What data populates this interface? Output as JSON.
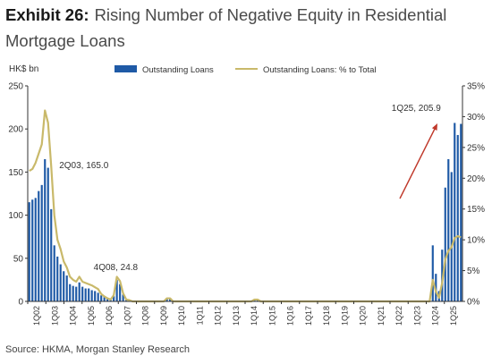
{
  "title": {
    "exhibit": "Exhibit 26:",
    "text": "Rising Number of Negative Equity in Residential Mortgage Loans"
  },
  "source": "Source: HKMA, Morgan Stanley Research",
  "colors": {
    "bar": "#1f5aa6",
    "line": "#c9b96a",
    "arrow": "#c0392b",
    "axis": "#333333"
  },
  "chart_data": {
    "type": "bar",
    "ylabel": "HK$ bn",
    "ylim": [
      0,
      250
    ],
    "yticks": [
      0,
      50,
      100,
      150,
      200,
      250
    ],
    "y2lim": [
      0,
      35
    ],
    "y2ticks": [
      "0%",
      "5%",
      "10%",
      "15%",
      "20%",
      "25%",
      "30%",
      "35%"
    ],
    "legend_position": "top",
    "xtick_labels": [
      "1Q02",
      "1Q03",
      "1Q04",
      "1Q05",
      "1Q06",
      "1Q07",
      "1Q08",
      "1Q09",
      "1Q10",
      "1Q11",
      "1Q12",
      "1Q13",
      "1Q14",
      "1Q15",
      "1Q16",
      "1Q17",
      "1Q18",
      "1Q19",
      "1Q20",
      "1Q21",
      "1Q22",
      "1Q23",
      "1Q24",
      "1Q25"
    ],
    "series": [
      {
        "name": "Outstanding Loans",
        "type": "bar",
        "axis": "left",
        "values": [
          115,
          118,
          120,
          128,
          135,
          165,
          155,
          107,
          65,
          52,
          43,
          35,
          30,
          20,
          18,
          17,
          22,
          17,
          15,
          15,
          13,
          12,
          10,
          7,
          5,
          3,
          2,
          6,
          24.8,
          20,
          8,
          2,
          1,
          0,
          0,
          0,
          0,
          0,
          0,
          0,
          0,
          0,
          0,
          0,
          3,
          3,
          0,
          0,
          0,
          0,
          0,
          0,
          0,
          0,
          0,
          0,
          0,
          0,
          0,
          0,
          0,
          0,
          0,
          0,
          0,
          0,
          0,
          0,
          0,
          0,
          0,
          0,
          2,
          2,
          0,
          0,
          0,
          0,
          0,
          0,
          0,
          0,
          0,
          0,
          0,
          0,
          0,
          0,
          0,
          0,
          0,
          0,
          0,
          0,
          0,
          0,
          0,
          0,
          0,
          0,
          0,
          0,
          0,
          0,
          0,
          0,
          0,
          0,
          0,
          0,
          0,
          0,
          0,
          0,
          0,
          0,
          0,
          0,
          0,
          0,
          0,
          0,
          0,
          0,
          0,
          0,
          0,
          0,
          0,
          65,
          32,
          12,
          60,
          132,
          165,
          150,
          207,
          193,
          205.9
        ]
      },
      {
        "name": "Outstanding Loans: % to Total",
        "type": "line",
        "axis": "right",
        "values": [
          21.2,
          21.5,
          22.5,
          24,
          25.5,
          31,
          29,
          22,
          14,
          10,
          8.5,
          6.5,
          5.5,
          4,
          3.5,
          3.2,
          4,
          3.2,
          3,
          2.8,
          2.6,
          2.3,
          2,
          1.2,
          0.8,
          0.5,
          0.3,
          1,
          4,
          3.3,
          1.3,
          0.3,
          0.2,
          0,
          0,
          0,
          0,
          0,
          0,
          0,
          0,
          0,
          0,
          0,
          0.5,
          0.5,
          0,
          0,
          0,
          0,
          0,
          0,
          0,
          0,
          0,
          0,
          0,
          0,
          0,
          0,
          0,
          0,
          0,
          0,
          0,
          0,
          0,
          0,
          0,
          0,
          0,
          0,
          0.3,
          0.3,
          0,
          0,
          0,
          0,
          0,
          0,
          0,
          0,
          0,
          0,
          0,
          0,
          0,
          0,
          0,
          0,
          0,
          0,
          0,
          0,
          0,
          0,
          0,
          0,
          0,
          0,
          0,
          0,
          0,
          0,
          0,
          0,
          0,
          0,
          0,
          0,
          0,
          0,
          0,
          0,
          0,
          0,
          0,
          0,
          0,
          0,
          0,
          0,
          0,
          0,
          0,
          0,
          0,
          0,
          0,
          3.5,
          1.6,
          0.6,
          3,
          6.8,
          8.2,
          8.8,
          10.3,
          10.6,
          10.4
        ]
      }
    ],
    "annotations": [
      {
        "text": "2Q03, 165.0",
        "series_index": 5
      },
      {
        "text": "4Q08, 24.8",
        "series_index": 28
      },
      {
        "text": "1Q25, 205.9",
        "series_index": 133
      }
    ]
  }
}
